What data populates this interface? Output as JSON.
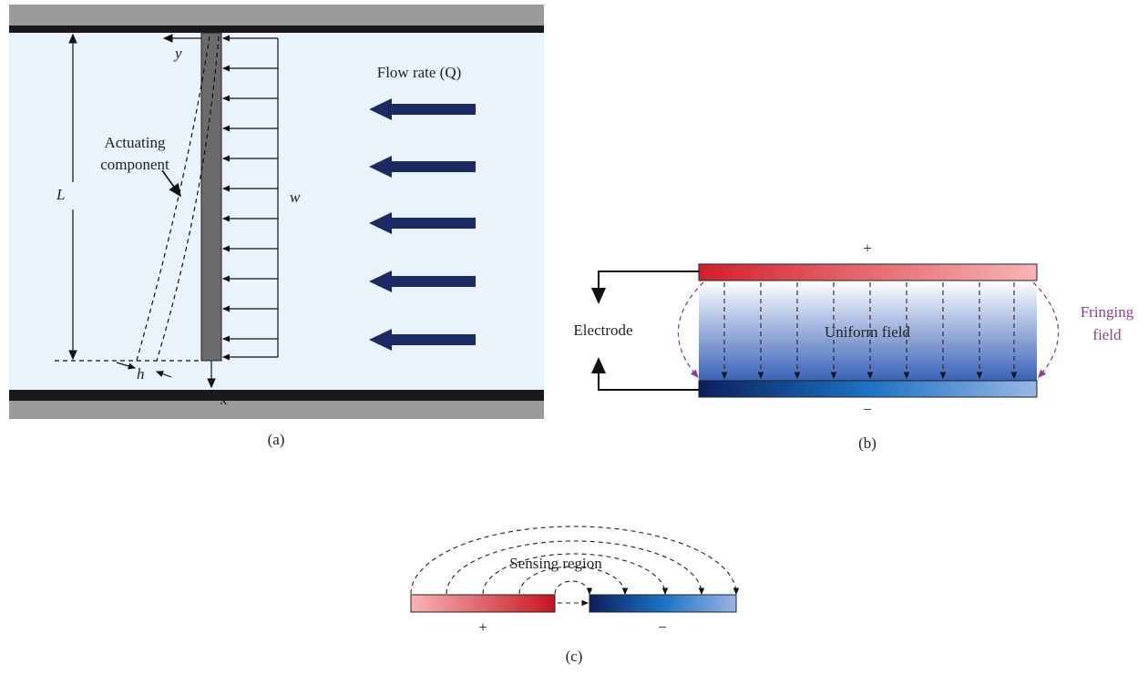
{
  "panel_a": {
    "y_axis": "y",
    "x_axis": "x",
    "length": "L",
    "load": "w",
    "thickness": "h",
    "component_label": [
      "Actuating",
      "component"
    ],
    "flow_label": "Flow rate (Q)",
    "caption": "(a)"
  },
  "panel_b": {
    "top_sign": "+",
    "bottom_sign": "−",
    "electrode_label": "Electrode",
    "uniform_label": "Uniform field",
    "fringing_label": [
      "Fringing",
      "field"
    ],
    "caption": "(b)"
  },
  "panel_c": {
    "region_label": "Sensing region",
    "left_sign": "+",
    "right_sign": "−",
    "caption": "(c)"
  }
}
